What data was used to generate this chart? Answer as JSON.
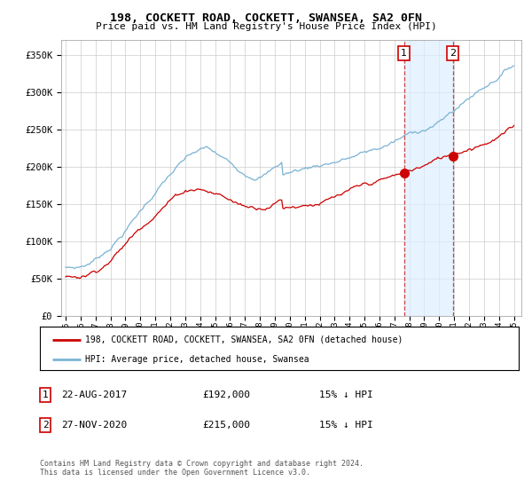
{
  "title": "198, COCKETT ROAD, COCKETT, SWANSEA, SA2 0FN",
  "subtitle": "Price paid vs. HM Land Registry's House Price Index (HPI)",
  "ylabel_ticks": [
    "£0",
    "£50K",
    "£100K",
    "£150K",
    "£200K",
    "£250K",
    "£300K",
    "£350K"
  ],
  "ytick_vals": [
    0,
    50000,
    100000,
    150000,
    200000,
    250000,
    300000,
    350000
  ],
  "ylim": [
    0,
    370000
  ],
  "hpi_color": "#7ab3d4",
  "price_color": "#cc0000",
  "m1_year": 2017.64,
  "m2_year": 2020.92,
  "m1_price": 192000,
  "m2_price": 215000,
  "legend_line1": "198, COCKETT ROAD, COCKETT, SWANSEA, SA2 0FN (detached house)",
  "legend_line2": "HPI: Average price, detached house, Swansea",
  "footer": "Contains HM Land Registry data © Crown copyright and database right 2024.\nThis data is licensed under the Open Government Licence v3.0.",
  "background_color": "#ffffff"
}
